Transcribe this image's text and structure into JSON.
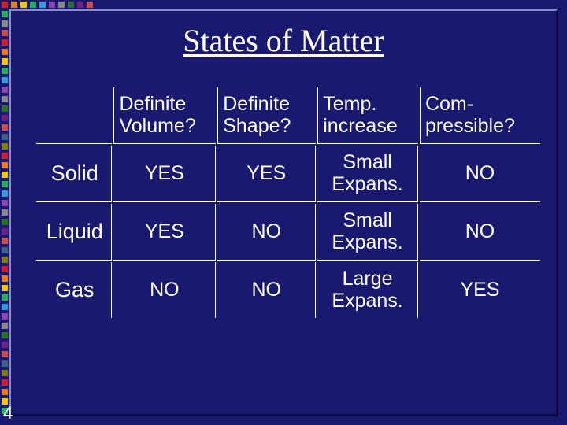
{
  "slide": {
    "title": "States of Matter",
    "slideNumber": "4",
    "background_color": "#191970",
    "text_color": "#ffffff",
    "title_font": "Times New Roman",
    "body_font": "Arial"
  },
  "deco": {
    "square_colors": [
      "#ce2029",
      "#e67e22",
      "#f1c40f",
      "#27ae60",
      "#3498db",
      "#8e44ad",
      "#888888",
      "#2c6e2c",
      "#702080",
      "#c94c4c",
      "#406080",
      "#808000"
    ],
    "square_size": 8,
    "square_gap": 4
  },
  "table": {
    "columns": [
      "",
      "Definite Volume?",
      "Definite Shape?",
      "Temp. increase",
      "Com-pressible?"
    ],
    "rows": [
      {
        "label": "Solid",
        "cells": [
          "YES",
          "YES",
          "Small Expans.",
          "NO"
        ]
      },
      {
        "label": "Liquid",
        "cells": [
          "YES",
          "NO",
          "Small Expans.",
          "NO"
        ]
      },
      {
        "label": "Gas",
        "cells": [
          "NO",
          "NO",
          "Large Expans.",
          "YES"
        ]
      }
    ]
  }
}
